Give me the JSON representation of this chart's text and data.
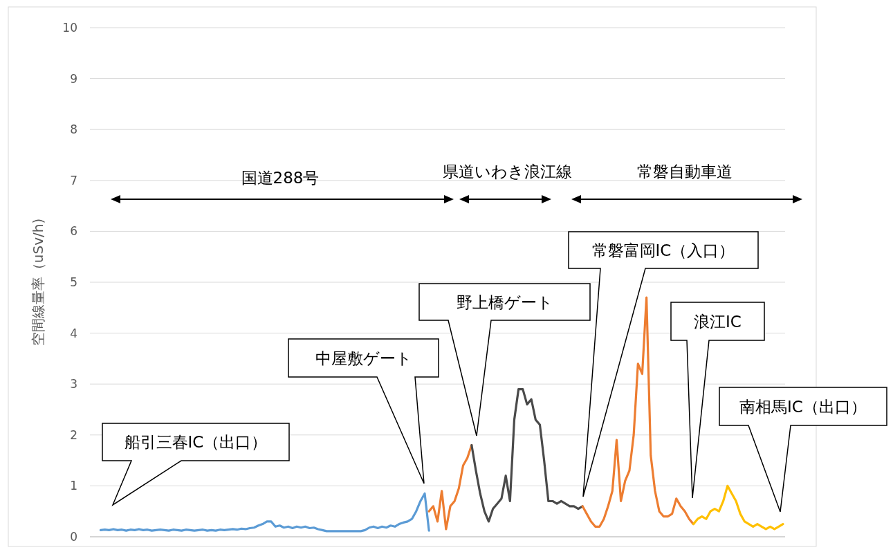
{
  "chart_data": {
    "type": "line",
    "ylabel": "空間線量率（uSv/h)",
    "ylim": [
      0,
      10
    ],
    "yticks": [
      0,
      1,
      2,
      3,
      4,
      5,
      6,
      7,
      8,
      9,
      10
    ],
    "grid": "y",
    "categories": [
      null,
      null,
      null,
      null,
      null,
      null,
      null,
      null,
      null,
      null,
      null,
      null,
      null,
      null,
      null,
      null,
      null,
      null,
      null,
      null,
      null,
      null,
      null,
      null,
      null,
      null,
      null,
      null,
      null,
      null,
      null,
      null,
      null,
      null,
      null,
      null,
      null,
      null,
      null,
      null,
      null,
      null,
      null,
      null,
      null,
      null,
      null,
      null,
      null,
      null,
      null,
      null,
      null,
      null,
      null,
      null,
      null,
      null,
      null,
      null,
      null,
      null,
      null,
      null,
      null,
      null,
      null,
      null,
      null,
      null,
      null,
      null,
      null,
      null,
      null,
      null,
      null,
      null,
      null,
      null,
      null,
      null,
      null,
      null,
      null,
      null,
      null,
      null,
      null,
      null,
      null,
      null,
      null,
      null,
      null,
      null,
      null,
      null,
      null,
      null,
      null,
      null,
      null,
      null,
      null,
      null,
      null,
      null,
      null,
      null,
      null,
      null,
      null,
      null,
      null,
      null,
      null,
      null,
      null,
      null,
      null,
      null,
      null,
      null,
      null,
      null,
      null,
      null,
      null,
      null,
      null,
      null,
      null,
      null,
      null,
      null,
      null,
      null,
      null,
      null,
      null,
      null,
      null,
      null,
      null,
      null,
      null,
      null,
      null,
      null,
      null,
      null,
      null,
      null,
      null,
      null,
      null,
      null,
      null,
      null,
      null,
      null,
      null
    ],
    "series": [
      {
        "color": "#5b9bd5",
        "values": [
          null,
          null,
          0.13,
          0.14,
          0.13,
          0.15,
          0.13,
          0.14,
          0.12,
          0.14,
          0.13,
          0.15,
          0.13,
          0.14,
          0.12,
          0.13,
          0.14,
          0.13,
          0.12,
          0.14,
          0.13,
          0.12,
          0.14,
          0.13,
          0.12,
          0.13,
          0.14,
          0.12,
          0.13,
          0.12,
          0.14,
          0.13,
          0.14,
          0.15,
          0.14,
          0.16,
          0.15,
          0.17,
          0.18,
          0.22,
          0.25,
          0.3,
          0.3,
          0.2,
          0.22,
          0.18,
          0.2,
          0.17,
          0.2,
          0.18,
          0.2,
          0.17,
          0.18,
          0.15,
          0.13,
          0.11,
          0.11,
          0.11,
          0.11,
          0.11,
          0.11,
          0.11,
          0.11,
          0.11,
          0.13,
          0.18,
          0.2,
          0.17,
          0.2,
          0.18,
          0.22,
          0.2,
          0.25,
          0.28,
          0.3,
          0.35,
          0.5,
          0.7,
          0.85,
          0.12,
          null,
          null,
          null,
          null,
          null,
          null,
          null,
          null,
          null,
          null,
          null,
          null,
          null,
          null,
          null,
          null,
          null,
          null,
          null,
          null,
          null,
          null,
          null,
          null,
          null,
          null,
          null,
          null,
          null,
          null,
          null,
          null,
          null,
          null,
          null,
          null,
          null,
          null,
          null,
          null,
          null,
          null,
          null,
          null,
          null,
          null,
          null,
          null,
          null,
          null,
          null,
          null,
          null,
          null,
          null,
          null,
          null,
          null,
          null,
          null,
          null,
          null,
          null,
          null,
          null,
          null,
          null,
          null,
          null,
          null,
          null,
          null,
          null,
          null,
          null,
          null,
          null,
          null,
          null,
          null,
          null,
          null,
          null
        ]
      },
      {
        "color": "#ed7d31",
        "values": [
          null,
          null,
          null,
          null,
          null,
          null,
          null,
          null,
          null,
          null,
          null,
          null,
          null,
          null,
          null,
          null,
          null,
          null,
          null,
          null,
          null,
          null,
          null,
          null,
          null,
          null,
          null,
          null,
          null,
          null,
          null,
          null,
          null,
          null,
          null,
          null,
          null,
          null,
          null,
          null,
          null,
          null,
          null,
          null,
          null,
          null,
          null,
          null,
          null,
          null,
          null,
          null,
          null,
          null,
          null,
          null,
          null,
          null,
          null,
          null,
          null,
          null,
          null,
          null,
          null,
          null,
          null,
          null,
          null,
          null,
          null,
          null,
          null,
          null,
          null,
          null,
          null,
          null,
          null,
          0.5,
          0.6,
          0.3,
          0.9,
          0.15,
          0.6,
          0.7,
          0.95,
          1.4,
          1.55,
          1.8,
          null,
          null,
          null,
          null,
          null,
          null,
          null,
          null,
          null,
          null,
          null,
          null,
          null,
          null,
          null,
          null,
          null,
          null,
          null,
          null,
          null,
          null,
          null,
          null,
          null,
          null,
          null,
          null,
          null,
          null,
          null,
          null,
          null,
          null,
          null,
          null,
          null,
          null,
          null,
          null,
          null,
          null,
          null,
          null,
          null,
          null,
          null,
          null,
          null,
          null,
          null,
          null,
          null,
          null,
          null,
          null,
          null,
          null,
          null,
          null,
          null,
          null,
          null,
          null,
          null,
          null,
          null,
          null,
          null,
          null,
          null,
          null,
          null
        ]
      },
      {
        "color": "#4a4a4a",
        "values": [
          null,
          null,
          null,
          null,
          null,
          null,
          null,
          null,
          null,
          null,
          null,
          null,
          null,
          null,
          null,
          null,
          null,
          null,
          null,
          null,
          null,
          null,
          null,
          null,
          null,
          null,
          null,
          null,
          null,
          null,
          null,
          null,
          null,
          null,
          null,
          null,
          null,
          null,
          null,
          null,
          null,
          null,
          null,
          null,
          null,
          null,
          null,
          null,
          null,
          null,
          null,
          null,
          null,
          null,
          null,
          null,
          null,
          null,
          null,
          null,
          null,
          null,
          null,
          null,
          null,
          null,
          null,
          null,
          null,
          null,
          null,
          null,
          null,
          null,
          null,
          null,
          null,
          null,
          null,
          null,
          null,
          null,
          null,
          null,
          null,
          null,
          null,
          null,
          null,
          1.8,
          1.3,
          0.85,
          0.5,
          0.3,
          0.55,
          0.65,
          0.75,
          1.2,
          0.7,
          2.3,
          2.9,
          2.9,
          2.6,
          2.7,
          2.3,
          2.2,
          1.5,
          0.7,
          0.7,
          0.65,
          0.7,
          0.65,
          0.6,
          0.6,
          0.55,
          0.6,
          null,
          null,
          null,
          null,
          null,
          null,
          null,
          null,
          null,
          null,
          null,
          null,
          null,
          null,
          null,
          null,
          null,
          null,
          null,
          null,
          null,
          null,
          null,
          null,
          null,
          null,
          null,
          null,
          null,
          null,
          null,
          null,
          null,
          null,
          null,
          null,
          null,
          null,
          null,
          null,
          null,
          null,
          null,
          null,
          null,
          null,
          null
        ]
      },
      {
        "color": "#ed7d31",
        "values": [
          null,
          null,
          null,
          null,
          null,
          null,
          null,
          null,
          null,
          null,
          null,
          null,
          null,
          null,
          null,
          null,
          null,
          null,
          null,
          null,
          null,
          null,
          null,
          null,
          null,
          null,
          null,
          null,
          null,
          null,
          null,
          null,
          null,
          null,
          null,
          null,
          null,
          null,
          null,
          null,
          null,
          null,
          null,
          null,
          null,
          null,
          null,
          null,
          null,
          null,
          null,
          null,
          null,
          null,
          null,
          null,
          null,
          null,
          null,
          null,
          null,
          null,
          null,
          null,
          null,
          null,
          null,
          null,
          null,
          null,
          null,
          null,
          null,
          null,
          null,
          null,
          null,
          null,
          null,
          null,
          null,
          null,
          null,
          null,
          null,
          null,
          null,
          null,
          null,
          null,
          null,
          null,
          null,
          null,
          null,
          null,
          null,
          null,
          null,
          null,
          null,
          null,
          null,
          null,
          null,
          null,
          null,
          null,
          null,
          null,
          null,
          null,
          null,
          null,
          null,
          0.6,
          0.45,
          0.3,
          0.2,
          0.2,
          0.35,
          0.6,
          0.9,
          1.9,
          0.7,
          1.1,
          1.3,
          2.0,
          3.4,
          3.2,
          4.7,
          1.6,
          0.9,
          0.5,
          0.4,
          0.4,
          0.45,
          0.75,
          0.6,
          0.5,
          0.35,
          0.25,
          null,
          null,
          null,
          null,
          null,
          null,
          null,
          null,
          null,
          null,
          null,
          null,
          null,
          null,
          null,
          null,
          null,
          null,
          null,
          null,
          null
        ]
      },
      {
        "color": "#ffc000",
        "values": [
          null,
          null,
          null,
          null,
          null,
          null,
          null,
          null,
          null,
          null,
          null,
          null,
          null,
          null,
          null,
          null,
          null,
          null,
          null,
          null,
          null,
          null,
          null,
          null,
          null,
          null,
          null,
          null,
          null,
          null,
          null,
          null,
          null,
          null,
          null,
          null,
          null,
          null,
          null,
          null,
          null,
          null,
          null,
          null,
          null,
          null,
          null,
          null,
          null,
          null,
          null,
          null,
          null,
          null,
          null,
          null,
          null,
          null,
          null,
          null,
          null,
          null,
          null,
          null,
          null,
          null,
          null,
          null,
          null,
          null,
          null,
          null,
          null,
          null,
          null,
          null,
          null,
          null,
          null,
          null,
          null,
          null,
          null,
          null,
          null,
          null,
          null,
          null,
          null,
          null,
          null,
          null,
          null,
          null,
          null,
          null,
          null,
          null,
          null,
          null,
          null,
          null,
          null,
          null,
          null,
          null,
          null,
          null,
          null,
          null,
          null,
          null,
          null,
          null,
          null,
          null,
          null,
          null,
          null,
          null,
          null,
          null,
          null,
          null,
          null,
          null,
          null,
          null,
          null,
          null,
          null,
          null,
          null,
          null,
          null,
          null,
          null,
          null,
          null,
          null,
          null,
          0.25,
          0.35,
          0.4,
          0.35,
          0.5,
          0.55,
          0.5,
          0.7,
          1.0,
          0.85,
          0.7,
          0.45,
          0.3,
          0.25,
          0.2,
          0.25,
          0.2,
          0.15,
          0.2,
          0.15,
          0.2,
          0.25
        ]
      }
    ],
    "annotations": [
      "船引三春IC（出口）",
      "中屋敷ゲート",
      "野上橋ゲート",
      "常磐富岡IC（入口）",
      "浪江IC",
      "南相馬IC（出口）",
      "国道288号",
      "県道いわき浪江線",
      "常磐自動車道"
    ]
  }
}
